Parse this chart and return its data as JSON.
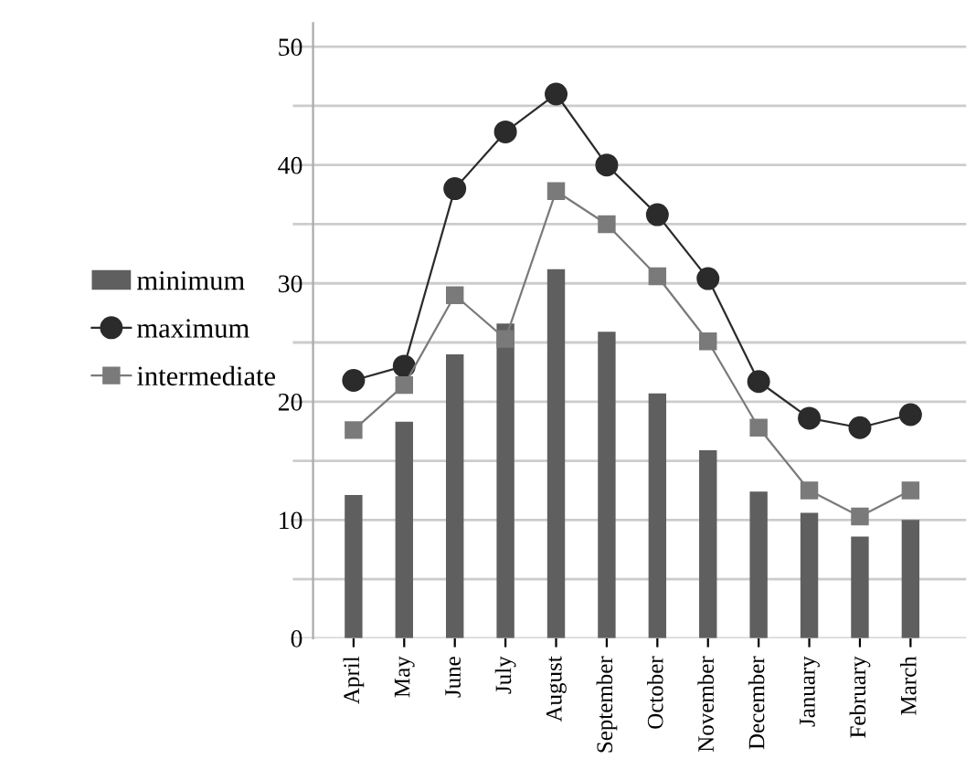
{
  "chart_data": {
    "type": "bar",
    "categories": [
      "April",
      "May",
      "June",
      "July",
      "August",
      "September",
      "October",
      "November",
      "December",
      "January",
      "February",
      "March"
    ],
    "series": [
      {
        "name": "minimum",
        "color": "#5f5f5f",
        "values": [
          12.1,
          18.3,
          24.0,
          26.6,
          31.2,
          25.9,
          20.7,
          15.9,
          12.4,
          10.6,
          8.6,
          10.0
        ]
      },
      {
        "name": "maximum",
        "type": "line",
        "marker": "circle",
        "color": "#2b2b2b",
        "values": [
          21.8,
          23.0,
          38.0,
          42.8,
          46.0,
          40.0,
          35.8,
          30.4,
          21.7,
          18.6,
          17.8,
          18.9
        ]
      },
      {
        "name": "intermediate",
        "type": "line",
        "marker": "square",
        "color": "#7a7a7a",
        "values": [
          17.6,
          21.4,
          29.0,
          25.3,
          37.8,
          35.0,
          30.6,
          25.1,
          17.8,
          12.5,
          10.3,
          12.5
        ]
      }
    ],
    "ylim": [
      0,
      52
    ],
    "yticks": [
      0,
      {
        "value": 5,
        "label": null
      },
      10,
      {
        "value": 15,
        "label": null
      },
      20,
      {
        "value": 25,
        "label": null
      },
      30,
      {
        "value": 35,
        "label": null
      },
      40,
      {
        "value": 45,
        "label": null
      },
      50
    ],
    "grid": "y",
    "legend": "left"
  }
}
